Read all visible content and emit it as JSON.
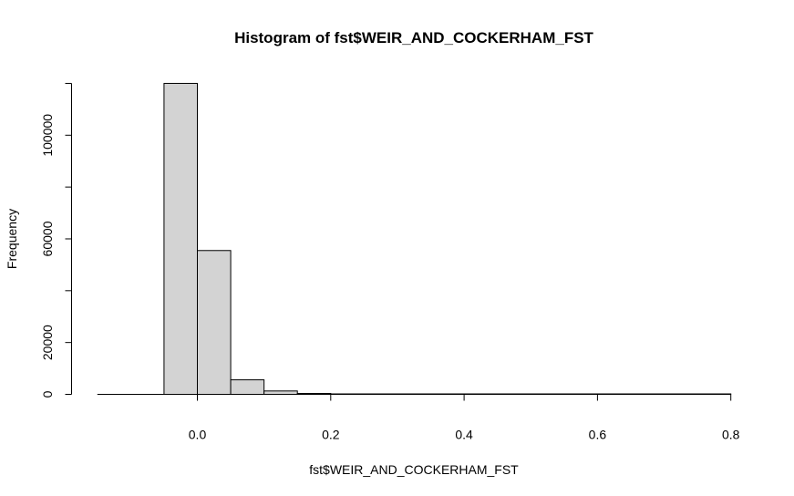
{
  "chart_data": {
    "type": "bar",
    "title": "Histogram of fst$WEIR_AND_COCKERHAM_FST",
    "xlabel": "fst$WEIR_AND_COCKERHAM_FST",
    "ylabel": "Frequency",
    "xlim": [
      -0.15,
      0.8
    ],
    "ylim": [
      0,
      120000
    ],
    "x_ticks": [
      "0.0",
      "0.2",
      "0.4",
      "0.6",
      "0.8"
    ],
    "y_ticks": [
      "0",
      "20000",
      "60000",
      "100000"
    ],
    "bin_width": 0.05,
    "bins": [
      {
        "start": -0.05,
        "end": 0.0,
        "count": 120000
      },
      {
        "start": 0.0,
        "end": 0.05,
        "count": 55500
      },
      {
        "start": 0.05,
        "end": 0.1,
        "count": 5600
      },
      {
        "start": 0.1,
        "end": 0.15,
        "count": 1300
      },
      {
        "start": 0.15,
        "end": 0.2,
        "count": 350
      },
      {
        "start": 0.2,
        "end": 0.25,
        "count": 100
      },
      {
        "start": 0.25,
        "end": 0.3,
        "count": 40
      },
      {
        "start": 0.3,
        "end": 0.35,
        "count": 15
      },
      {
        "start": 0.35,
        "end": 0.4,
        "count": 8
      },
      {
        "start": 0.4,
        "end": 0.45,
        "count": 5
      },
      {
        "start": 0.45,
        "end": 0.5,
        "count": 3
      },
      {
        "start": 0.5,
        "end": 0.55,
        "count": 2
      },
      {
        "start": 0.55,
        "end": 0.6,
        "count": 2
      },
      {
        "start": 0.6,
        "end": 0.65,
        "count": 1
      },
      {
        "start": 0.65,
        "end": 0.7,
        "count": 1
      },
      {
        "start": 0.7,
        "end": 0.75,
        "count": 1
      },
      {
        "start": 0.75,
        "end": 0.8,
        "count": 1
      }
    ],
    "grid": false,
    "bar_fill": "#d3d3d3",
    "bar_stroke": "#000000"
  }
}
